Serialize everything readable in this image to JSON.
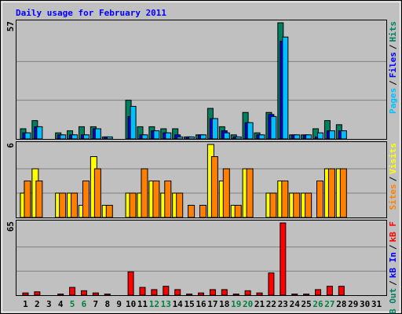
{
  "title": "Daily usage for February 2011",
  "separator": "/",
  "categories": [
    "1",
    "2",
    "3",
    "4",
    "5",
    "6",
    "7",
    "8",
    "9",
    "10",
    "11",
    "12",
    "13",
    "14",
    "15",
    "16",
    "17",
    "18",
    "19",
    "20",
    "21",
    "22",
    "23",
    "24",
    "25",
    "26",
    "27",
    "28",
    "29",
    "30",
    "31"
  ],
  "category_colors": [
    "#000000",
    "#000000",
    "#000000",
    "#000000",
    "#008040",
    "#008040",
    "#000000",
    "#000000",
    "#000000",
    "#000000",
    "#000000",
    "#008040",
    "#008040",
    "#000000",
    "#000000",
    "#000000",
    "#000000",
    "#000000",
    "#008040",
    "#008040",
    "#000000",
    "#000000",
    "#000000",
    "#000000",
    "#000000",
    "#008040",
    "#008040",
    "#000000",
    "#000000",
    "#000000",
    "#000000"
  ],
  "chart_data": [
    {
      "type": "bar",
      "ylim": [
        0,
        57
      ],
      "yticks": [
        57
      ],
      "series": [
        {
          "name": "Hits",
          "color": "#008060",
          "values": [
            5,
            9,
            0,
            3,
            4,
            6,
            6,
            1,
            0,
            19,
            6,
            6,
            5,
            5,
            1,
            2,
            15,
            6,
            2,
            13,
            3,
            13,
            57,
            2,
            2,
            5,
            9,
            7,
            0,
            0,
            0
          ]
        },
        {
          "name": "Files",
          "color": "#0000ff",
          "values": [
            3,
            6,
            0,
            2,
            2,
            2,
            5,
            1,
            0,
            11,
            2,
            4,
            3,
            2,
            1,
            2,
            10,
            4,
            1,
            8,
            2,
            12,
            48,
            2,
            2,
            1,
            4,
            4,
            0,
            0,
            0
          ]
        },
        {
          "name": "Pages",
          "color": "#00c0ff",
          "values": [
            3,
            6,
            0,
            2,
            2,
            2,
            5,
            1,
            0,
            16,
            2,
            4,
            3,
            1,
            1,
            2,
            10,
            3,
            1,
            8,
            2,
            11,
            50,
            2,
            2,
            3,
            4,
            4,
            0,
            0,
            0
          ]
        }
      ]
    },
    {
      "type": "bar",
      "ylim": [
        0,
        6
      ],
      "yticks": [
        6
      ],
      "series": [
        {
          "name": "Visits",
          "color": "#ffff00",
          "values": [
            2,
            4,
            0,
            2,
            2,
            1,
            5,
            1,
            0,
            2,
            2,
            3,
            2,
            2,
            0,
            0,
            6,
            3,
            1,
            4,
            0,
            2,
            3,
            2,
            2,
            0,
            4,
            4,
            0,
            0,
            0
          ]
        },
        {
          "name": "Sites",
          "color": "#ff8000",
          "values": [
            3,
            3,
            0,
            2,
            2,
            3,
            4,
            1,
            0,
            2,
            4,
            3,
            3,
            2,
            1,
            1,
            5,
            4,
            1,
            4,
            0,
            2,
            3,
            2,
            2,
            3,
            4,
            4,
            0,
            0,
            0
          ]
        }
      ]
    },
    {
      "type": "bar",
      "ylim": [
        0,
        65
      ],
      "yticks": [
        65
      ],
      "series": [
        {
          "name": "kB F",
          "color": "#ff0000",
          "values": [
            2,
            3,
            0,
            1,
            7,
            4,
            2,
            1,
            0,
            21,
            7,
            5,
            8,
            5,
            1,
            2,
            5,
            5,
            1,
            4,
            2,
            20,
            65,
            1,
            1,
            5,
            8,
            8,
            0,
            0,
            0
          ]
        },
        {
          "name": "kB In",
          "color": "#0000ff",
          "values": [
            0,
            0,
            0,
            0,
            0,
            0,
            0,
            0,
            0,
            0,
            0,
            0,
            0,
            0,
            0,
            0,
            0,
            0,
            0,
            0,
            0,
            0,
            0,
            0,
            0,
            0,
            0,
            0,
            0,
            0,
            0
          ]
        },
        {
          "name": "kB Out",
          "color": "#008060",
          "values": [
            0,
            0,
            0,
            0,
            0,
            0,
            0,
            0,
            0,
            0,
            0,
            0,
            0,
            0,
            0,
            0,
            0,
            0,
            0,
            0,
            0,
            0,
            0,
            0,
            0,
            0,
            0,
            0,
            0,
            0,
            0
          ]
        }
      ]
    }
  ]
}
